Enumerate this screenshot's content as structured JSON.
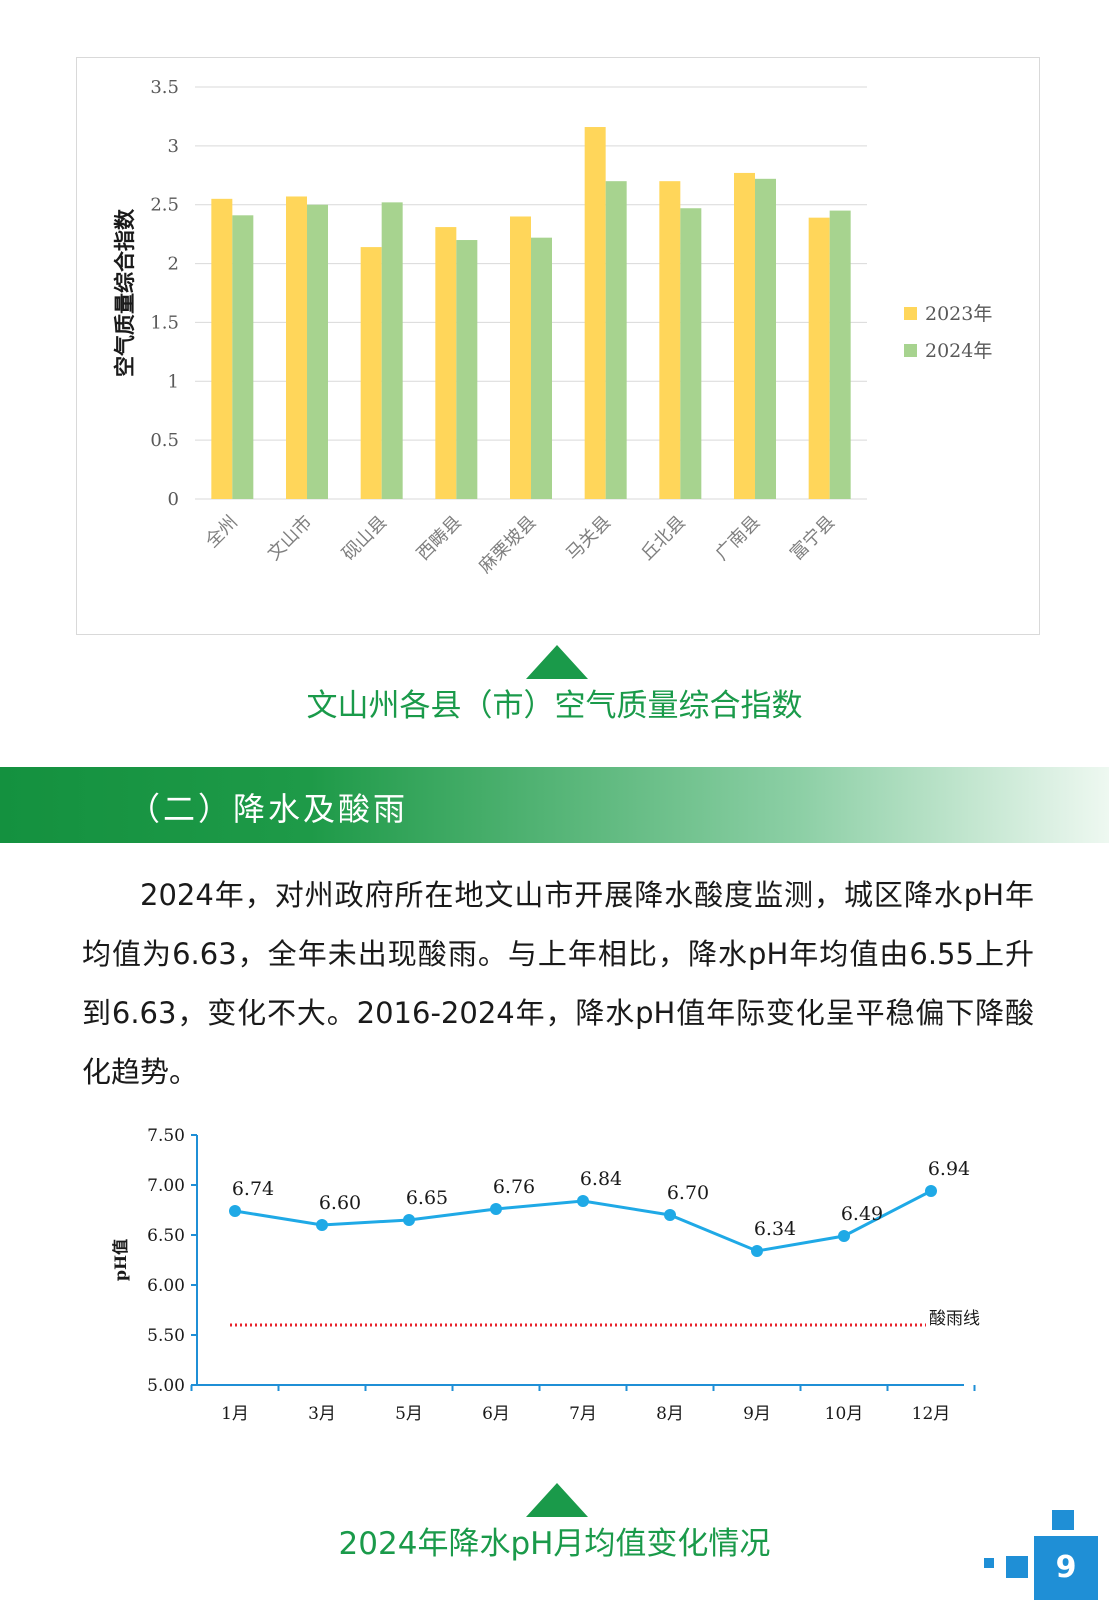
{
  "bar_chart": {
    "caption": "文山州各县（市）空气质量综合指数",
    "legend": [
      {
        "name": "2023年",
        "color": "#ffd65a"
      },
      {
        "name": "2024年",
        "color": "#a7d38f"
      }
    ]
  },
  "section": {
    "title": "（二）降水及酸雨",
    "paragraph": "2024年，对州政府所在地文山市开展降水酸度监测，城区降水pH年均值为6.63，全年未出现酸雨。与上年相比，降水pH年均值由6.55上升到6.63，变化不大。2016-2024年，降水pH值年际变化呈平稳偏下降酸化趋势。"
  },
  "line_chart": {
    "caption": "2024年降水pH月均值变化情况",
    "reference_label": "酸雨线"
  },
  "page": {
    "number": "9"
  },
  "chart_data": [
    {
      "type": "bar",
      "title": "",
      "xlabel": "",
      "ylabel": "空气质量综合指数",
      "ylim": [
        0,
        3.5
      ],
      "yticks": [
        "0",
        "0.5",
        "1",
        "1.5",
        "2",
        "2.5",
        "3",
        "3.5"
      ],
      "categories": [
        "全州",
        "文山市",
        "砚山县",
        "西畴县",
        "麻栗坡县",
        "马关县",
        "丘北县",
        "广南县",
        "富宁县"
      ],
      "series": [
        {
          "name": "2023年",
          "color": "#ffd65a",
          "values": [
            2.55,
            2.57,
            2.14,
            2.31,
            2.4,
            3.16,
            2.7,
            2.77,
            2.39
          ]
        },
        {
          "name": "2024年",
          "color": "#a7d38f",
          "values": [
            2.41,
            2.5,
            2.52,
            2.2,
            2.22,
            2.7,
            2.47,
            2.72,
            2.45
          ]
        }
      ],
      "grid": true,
      "legend_position": "right"
    },
    {
      "type": "line",
      "title": "",
      "xlabel": "",
      "ylabel": "pH值",
      "ylim": [
        5.0,
        7.5
      ],
      "yticks": [
        "5.00",
        "5.50",
        "6.00",
        "6.50",
        "7.00",
        "7.50"
      ],
      "categories": [
        "1月",
        "3月",
        "5月",
        "6月",
        "7月",
        "8月",
        "9月",
        "10月",
        "12月"
      ],
      "series": [
        {
          "color": "#1fa9e6",
          "values": [
            6.74,
            6.6,
            6.65,
            6.76,
            6.84,
            6.7,
            6.34,
            6.49,
            6.94
          ],
          "labels": [
            "6.74",
            "6.60",
            "6.65",
            "6.76",
            "6.84",
            "6.70",
            "6.34",
            "6.49",
            "6.94"
          ]
        }
      ],
      "reference_line": {
        "value": 5.6,
        "label": "酸雨线",
        "color": "#e8232c"
      },
      "grid": false
    }
  ]
}
